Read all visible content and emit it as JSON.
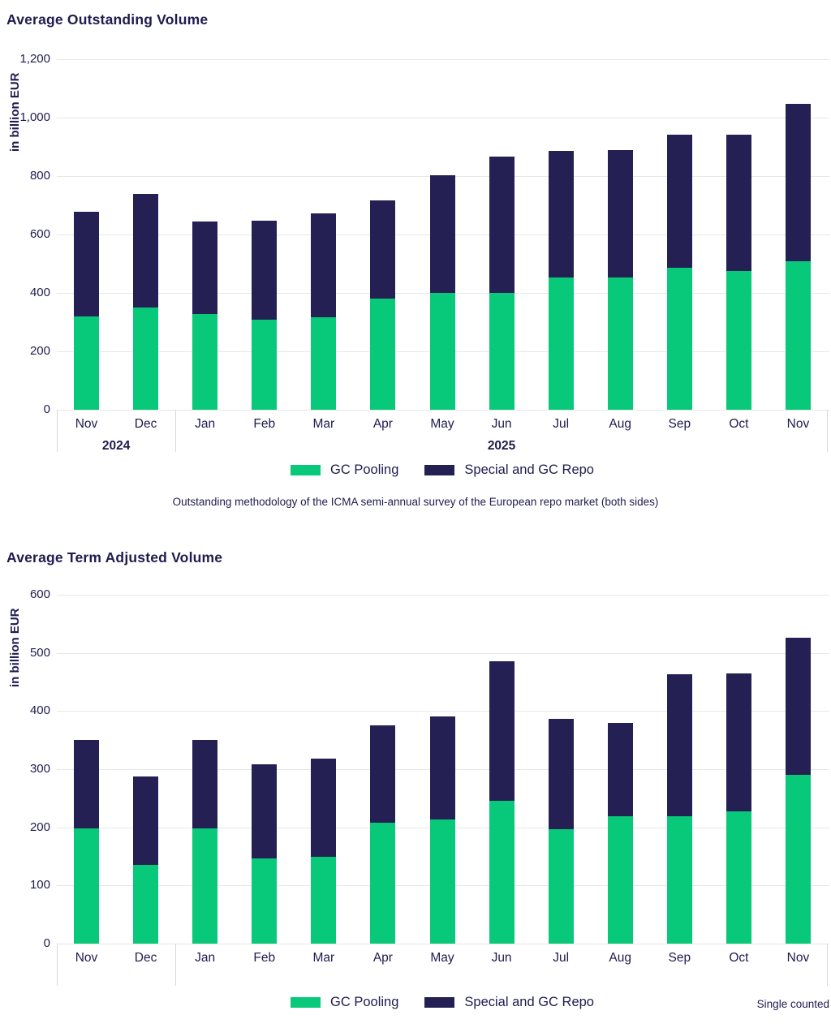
{
  "colors": {
    "gc_pooling_green": "#08C87A",
    "special_repo_navy": "#252053",
    "gridline_gray": "#e7e7e7",
    "axis_bracket_gray": "#d9d9d9",
    "text_navy": "#1f1b4e",
    "background": "#ffffff"
  },
  "chart_data": [
    {
      "type": "bar",
      "stacked": true,
      "title": "Average Outstanding Volume",
      "ylabel": "in billion EUR",
      "xlabel": "",
      "grid": true,
      "legend_position": "bottom-center",
      "ylim": [
        0,
        1200
      ],
      "ytick_step": 200,
      "ytick_labels": [
        "0",
        "200",
        "400",
        "600",
        "800",
        "1,000",
        "1,200"
      ],
      "categories": [
        "Nov",
        "Dec",
        "Jan",
        "Feb",
        "Mar",
        "Apr",
        "May",
        "Jun",
        "Jul",
        "Aug",
        "Sep",
        "Oct",
        "Nov"
      ],
      "year_groups": [
        {
          "label": "2024",
          "from": 0,
          "to": 1
        },
        {
          "label": "2025",
          "from": 2,
          "to": 12
        }
      ],
      "separators": [
        0,
        2,
        13
      ],
      "series": [
        {
          "name": "GC Pooling",
          "color": "#08C87A",
          "values": [
            320,
            350,
            328,
            308,
            318,
            380,
            400,
            401,
            453,
            454,
            485,
            476,
            507
          ]
        },
        {
          "name": "Special and GC Repo",
          "color": "#252053",
          "values": [
            358,
            390,
            317,
            338,
            354,
            338,
            403,
            466,
            434,
            435,
            457,
            466,
            541
          ]
        }
      ],
      "totals": [
        678,
        740,
        645,
        646,
        672,
        718,
        803,
        867,
        887,
        889,
        942,
        942,
        1048
      ],
      "caption": "Outstanding methodology of the ICMA semi-annual survey of the European repo market (both sides)",
      "note": ""
    },
    {
      "type": "bar",
      "stacked": true,
      "title": "Average Term Adjusted Volume",
      "ylabel": "in billion EUR",
      "xlabel": "",
      "grid": true,
      "legend_position": "bottom-center",
      "ylim": [
        0,
        600
      ],
      "ytick_step": 100,
      "ytick_labels": [
        "0",
        "100",
        "200",
        "300",
        "400",
        "500",
        "600"
      ],
      "categories": [
        "Nov",
        "Dec",
        "Jan",
        "Feb",
        "Mar",
        "Apr",
        "May",
        "Jun",
        "Jul",
        "Aug",
        "Sep",
        "Oct",
        "Nov"
      ],
      "year_groups": [],
      "separators": [
        0,
        2,
        13
      ],
      "series": [
        {
          "name": "GC Pooling",
          "color": "#08C87A",
          "values": [
            198,
            135,
            198,
            146,
            150,
            208,
            213,
            245,
            197,
            219,
            219,
            228,
            290
          ]
        },
        {
          "name": "Special and GC Repo",
          "color": "#252053",
          "values": [
            152,
            152,
            152,
            162,
            168,
            167,
            178,
            240,
            190,
            161,
            244,
            236,
            236
          ]
        }
      ],
      "totals": [
        350,
        287,
        350,
        308,
        318,
        375,
        391,
        485,
        387,
        380,
        463,
        464,
        526
      ],
      "caption": "",
      "note": "Single counted"
    }
  ]
}
